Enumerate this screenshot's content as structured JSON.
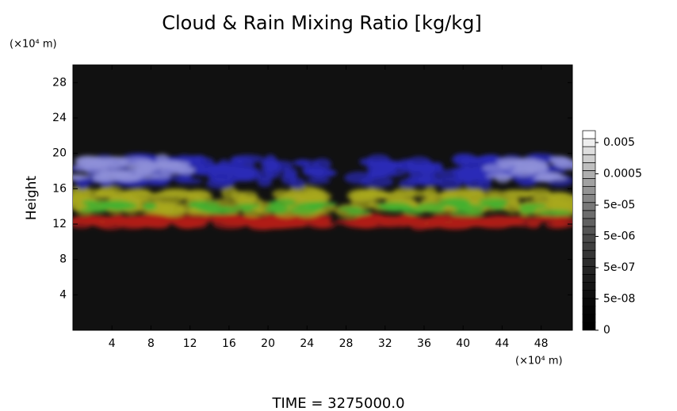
{
  "chart_data": {
    "type": "image",
    "title": "Cloud & Rain Mixing Ratio [kg/kg]",
    "ylabel": "Height",
    "y_unit_label": "(×10⁴ m)",
    "x_unit_label": "(×10⁴ m)",
    "footer": "TIME = 3275000.0",
    "xlim": [
      0,
      51.2
    ],
    "ylim": [
      0,
      30
    ],
    "xticks": [
      4,
      8,
      12,
      16,
      20,
      24,
      28,
      32,
      36,
      40,
      44,
      48
    ],
    "yticks": [
      4,
      8,
      12,
      16,
      20,
      24,
      28
    ],
    "colorbar_ticks": [
      0,
      {
        "value": 5e-08,
        "label": "5e-08"
      },
      {
        "value": 5e-07,
        "label": "5e-07"
      },
      {
        "value": 5e-06,
        "label": "5e-06"
      },
      {
        "value": 5e-05,
        "label": "5e-05"
      },
      0.0005,
      0.005
    ]
  }
}
